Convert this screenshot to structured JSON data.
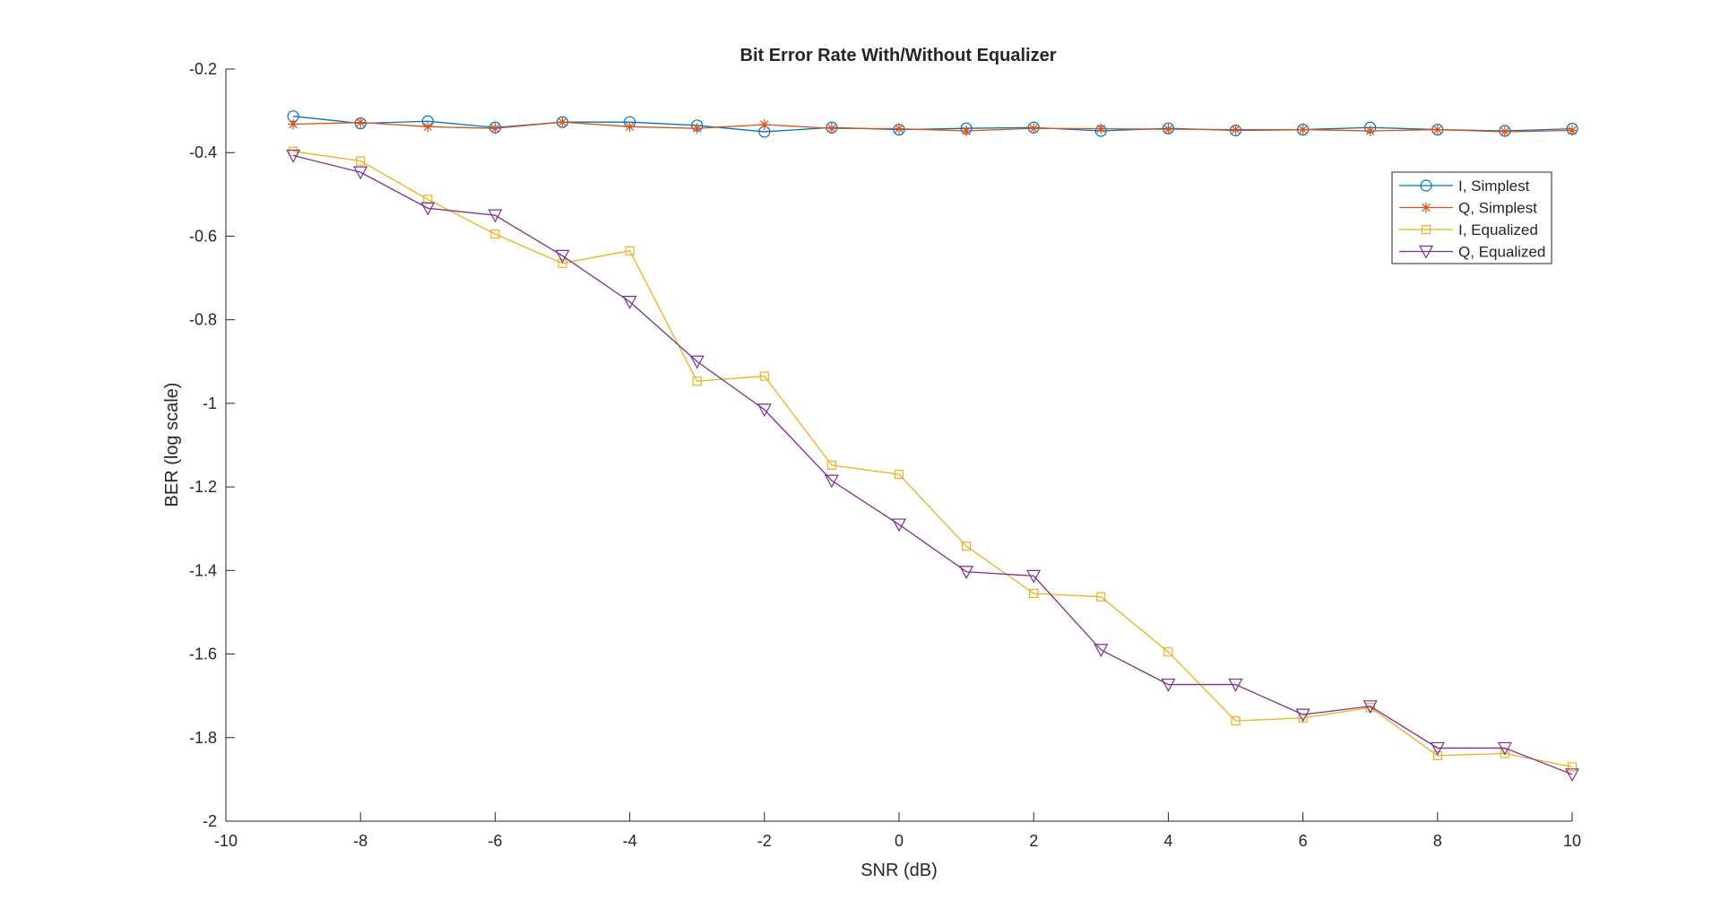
{
  "chart_data": {
    "type": "line",
    "title": "Bit Error Rate With/Without Equalizer",
    "xlabel": "SNR (dB)",
    "ylabel": "BER (log scale)",
    "xlim": [
      -10,
      10
    ],
    "ylim": [
      -2,
      -0.2
    ],
    "x_ticks": [
      "-10",
      "-8",
      "-6",
      "-4",
      "-2",
      "0",
      "2",
      "4",
      "6",
      "8",
      "10"
    ],
    "y_ticks": [
      "-0.2",
      "-0.4",
      "-0.6",
      "-0.8",
      "-1",
      "-1.2",
      "-1.4",
      "-1.6",
      "-1.8",
      "-2"
    ],
    "grid": false,
    "legend_position": "top-right",
    "x": [
      -9,
      -8,
      -7,
      -6,
      -5,
      -4,
      -3,
      -2,
      -1,
      0,
      1,
      2,
      3,
      4,
      5,
      6,
      7,
      8,
      9,
      10
    ],
    "series": [
      {
        "name": "I, Simplest",
        "color": "#0072BD",
        "marker": "circle",
        "values": [
          -0.313,
          -0.33,
          -0.325,
          -0.34,
          -0.327,
          -0.327,
          -0.335,
          -0.35,
          -0.34,
          -0.345,
          -0.342,
          -0.34,
          -0.348,
          -0.342,
          -0.347,
          -0.345,
          -0.34,
          -0.345,
          -0.348,
          -0.343
        ]
      },
      {
        "name": "Q, Simplest",
        "color": "#D95319",
        "marker": "asterisk",
        "values": [
          -0.332,
          -0.328,
          -0.338,
          -0.342,
          -0.327,
          -0.338,
          -0.342,
          -0.333,
          -0.342,
          -0.343,
          -0.348,
          -0.342,
          -0.343,
          -0.344,
          -0.345,
          -0.345,
          -0.348,
          -0.345,
          -0.35,
          -0.347
        ]
      },
      {
        "name": "I, Equalized",
        "color": "#EDB120",
        "marker": "square",
        "values": [
          -0.397,
          -0.42,
          -0.512,
          -0.595,
          -0.665,
          -0.635,
          -0.947,
          -0.935,
          -1.148,
          -1.17,
          -1.342,
          -1.455,
          -1.463,
          -1.595,
          -1.76,
          -1.753,
          -1.728,
          -1.843,
          -1.838,
          -1.87
        ]
      },
      {
        "name": "Q, Equalized",
        "color": "#7E2F8E",
        "marker": "triangle-down",
        "values": [
          -0.407,
          -0.447,
          -0.533,
          -0.55,
          -0.647,
          -0.757,
          -0.9,
          -1.015,
          -1.185,
          -1.29,
          -1.403,
          -1.413,
          -1.59,
          -1.673,
          -1.673,
          -1.745,
          -1.725,
          -1.825,
          -1.825,
          -1.888
        ]
      }
    ]
  }
}
